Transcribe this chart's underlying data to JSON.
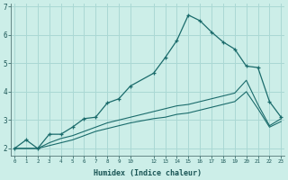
{
  "xlabel": "Humidex (Indice chaleur)",
  "bg_color": "#cceee8",
  "grid_color": "#aad8d4",
  "line_color": "#1a6b6b",
  "x_ticks": [
    0,
    1,
    2,
    3,
    4,
    5,
    6,
    7,
    8,
    9,
    10,
    12,
    13,
    14,
    15,
    16,
    17,
    18,
    19,
    20,
    21,
    22,
    23
  ],
  "line1_x": [
    0,
    1,
    2,
    3,
    4,
    5,
    6,
    7,
    8,
    9,
    10,
    12,
    13,
    14,
    15,
    16,
    17,
    18,
    19,
    20,
    21,
    22,
    23
  ],
  "line1_y": [
    2.0,
    2.3,
    2.0,
    2.5,
    2.5,
    2.75,
    3.05,
    3.1,
    3.6,
    3.75,
    4.2,
    4.65,
    5.2,
    5.8,
    6.7,
    6.5,
    6.1,
    5.75,
    5.5,
    4.9,
    4.85,
    3.65,
    3.1
  ],
  "line2_x": [
    0,
    2,
    3,
    4,
    5,
    6,
    7,
    8,
    9,
    10,
    12,
    13,
    14,
    15,
    16,
    17,
    18,
    19,
    20,
    21,
    22,
    23
  ],
  "line2_y": [
    2.0,
    2.0,
    2.2,
    2.35,
    2.45,
    2.6,
    2.75,
    2.9,
    3.0,
    3.1,
    3.3,
    3.4,
    3.5,
    3.55,
    3.65,
    3.75,
    3.85,
    3.95,
    4.4,
    3.55,
    2.8,
    3.05
  ],
  "line3_x": [
    0,
    2,
    3,
    4,
    5,
    6,
    7,
    8,
    9,
    10,
    12,
    13,
    14,
    15,
    16,
    17,
    18,
    19,
    20,
    21,
    22,
    23
  ],
  "line3_y": [
    2.0,
    2.0,
    2.1,
    2.2,
    2.3,
    2.45,
    2.6,
    2.7,
    2.8,
    2.9,
    3.05,
    3.1,
    3.2,
    3.25,
    3.35,
    3.45,
    3.55,
    3.65,
    4.0,
    3.4,
    2.75,
    2.95
  ],
  "ylim": [
    1.75,
    7.1
  ],
  "xlim": [
    -0.3,
    23.3
  ],
  "yticks": [
    2,
    3,
    4,
    5,
    6,
    7
  ]
}
